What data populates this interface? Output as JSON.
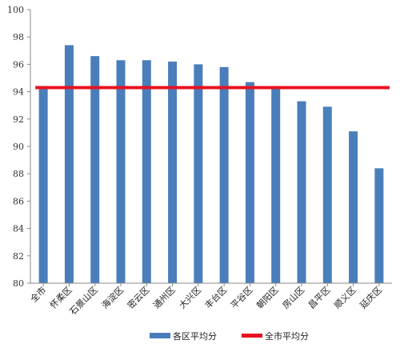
{
  "chart_data": {
    "type": "bar",
    "categories": [
      "全市",
      "怀柔区",
      "石景山区",
      "海淀区",
      "密云区",
      "通州区",
      "大兴区",
      "丰台区",
      "平谷区",
      "朝阳区",
      "房山区",
      "昌平区",
      "顺义区",
      "延庆区"
    ],
    "series": [
      {
        "name": "各区平均分",
        "type": "bar",
        "color": "#4a7ebb",
        "values": [
          94.3,
          97.4,
          96.6,
          96.3,
          96.3,
          96.2,
          96.0,
          95.8,
          94.7,
          94.3,
          93.3,
          92.9,
          91.1,
          88.4
        ]
      },
      {
        "name": "全市平均分",
        "type": "line",
        "color": "#e8121f",
        "value": 94.3
      }
    ],
    "ylim": [
      80,
      100
    ],
    "yticks": [
      80,
      82,
      84,
      86,
      88,
      90,
      92,
      94,
      96,
      98,
      100
    ],
    "grid": false,
    "legend": "bottom"
  }
}
